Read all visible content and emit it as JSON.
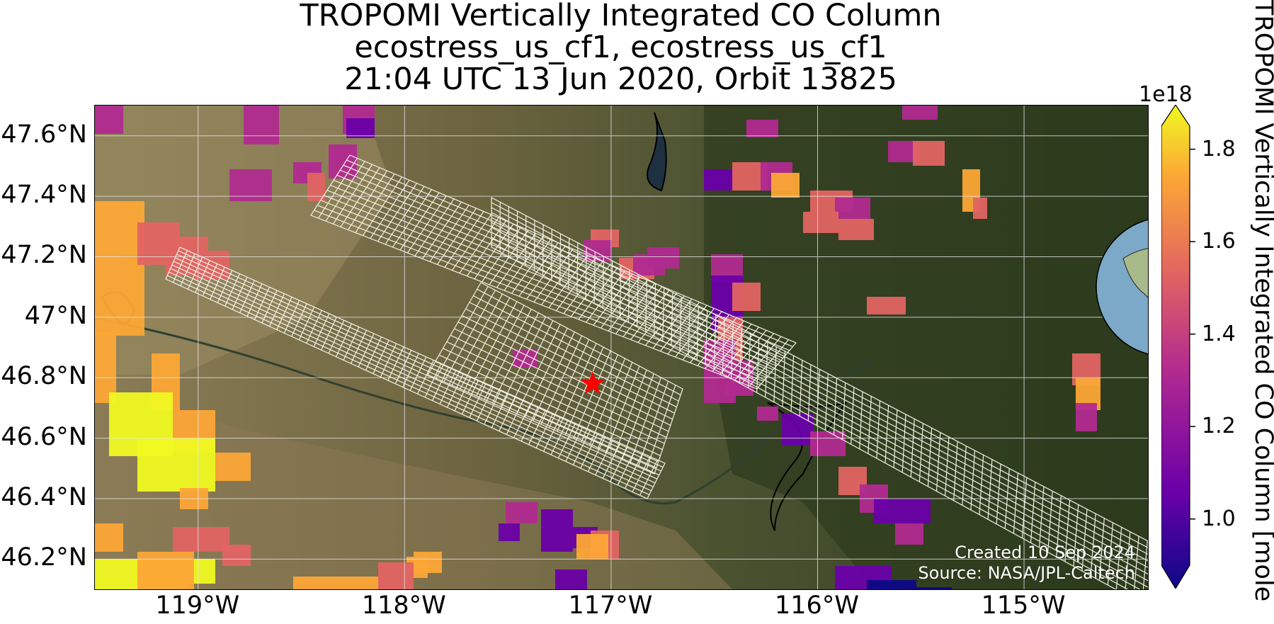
{
  "title": {
    "line1": "TROPOMI Vertically Integrated CO Column",
    "line2": "ecostress_us_cf1, ecostress_us_cf1",
    "line3": "21:04 UTC 13 Jun 2020, Orbit 13825"
  },
  "map": {
    "lon_range": [
      -119.5,
      -114.4
    ],
    "lat_range": [
      46.1,
      47.7
    ],
    "lon_ticks": [
      "119°W",
      "118°W",
      "117°W",
      "116°W",
      "115°W"
    ],
    "lat_ticks": [
      "47.6°N",
      "47.4°N",
      "47.2°N",
      "47°N",
      "46.8°N",
      "46.6°N",
      "46.4°N",
      "46.2°N"
    ],
    "gridlines": true,
    "site_marker": {
      "lon": -117.09,
      "lat": 46.78,
      "symbol": "star",
      "color": "#ff0000"
    },
    "basemap": "satellite imagery",
    "ecostress_footprint": "white grid swaths",
    "inset": "globe with red star",
    "credit_line1": "Created 10 Sep 2024",
    "credit_line2": "Source: NASA/JPL-Caltech"
  },
  "colorbar": {
    "exponent": "1e18",
    "ticks": [
      "1.8",
      "1.6",
      "1.4",
      "1.2",
      "1.0"
    ],
    "range": [
      0.9,
      1.85
    ],
    "label": "TROPOMI Vertically Integrated CO Column [mole",
    "colors": [
      "#0d0887",
      "#6a00a8",
      "#b12a90",
      "#e16462",
      "#fca636",
      "#f0f921"
    ]
  }
}
